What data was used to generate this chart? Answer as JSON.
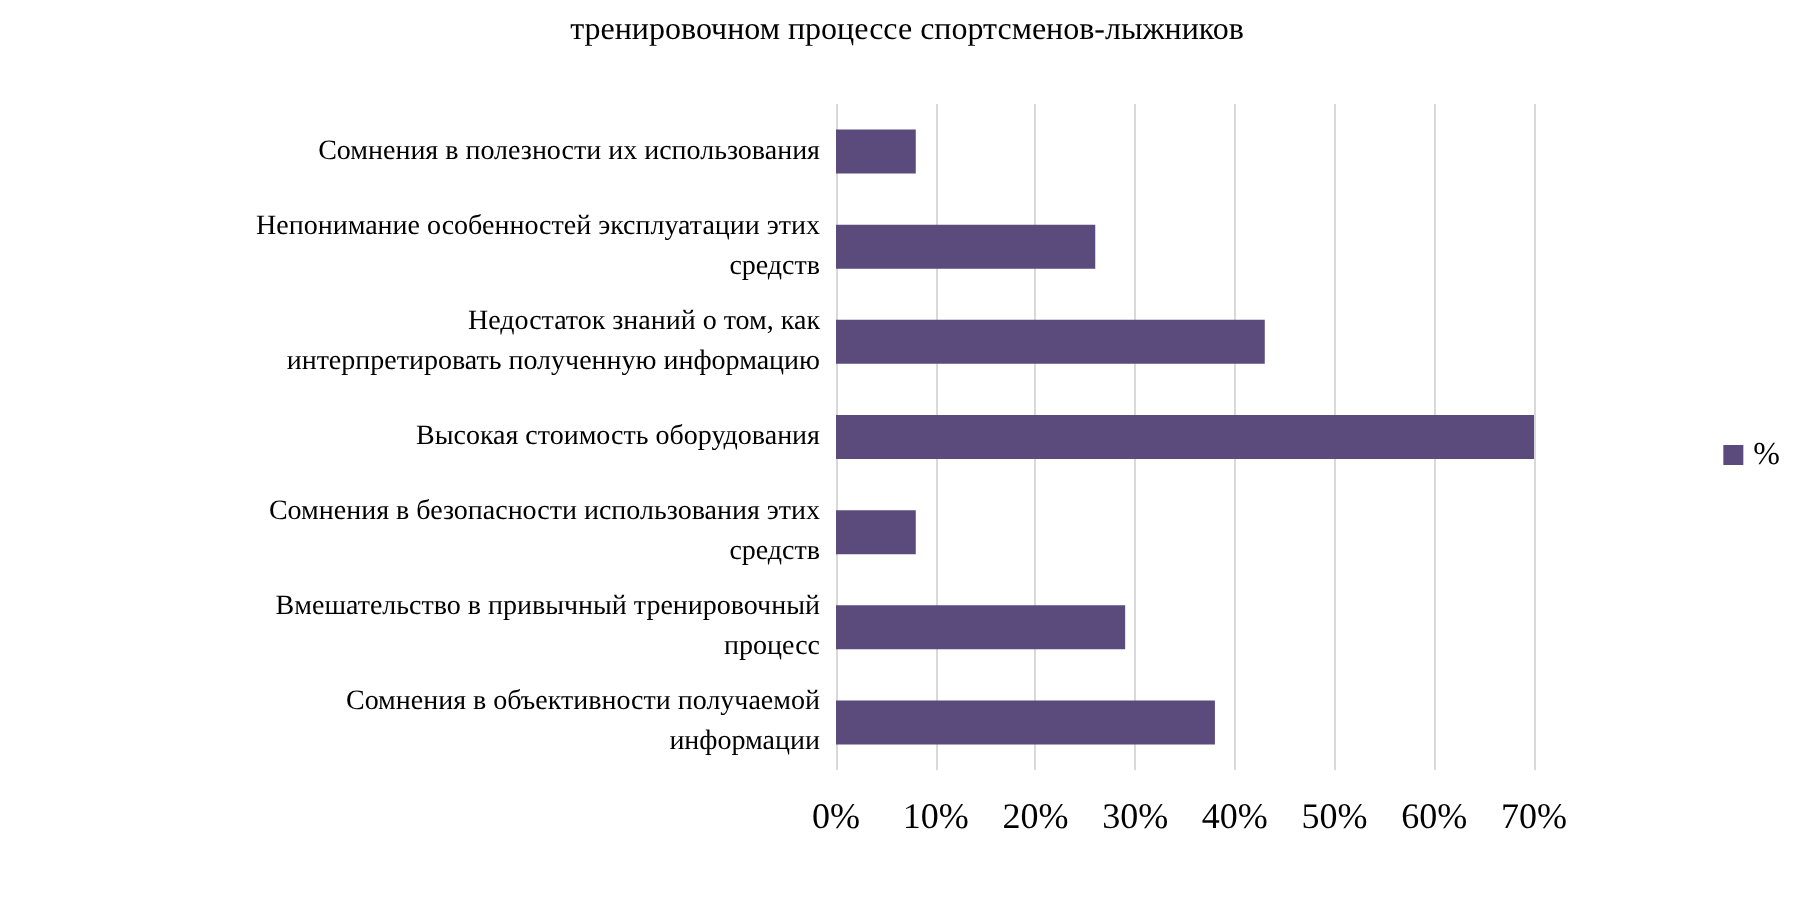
{
  "chart_data": {
    "type": "bar",
    "orientation": "horizontal",
    "title": "тренировочном процессе спортсменов-лыжников",
    "categories": [
      "Сомнения в полезности их использования",
      "Непонимание особенностей эксплуатации этих средств",
      "Недостаток знаний о том, как интерпретировать полученную информацию",
      "Высокая стоимость оборудования",
      "Сомнения в безопасности использования этих средств",
      "Вмешательство в привычный тренировочный процесс",
      "Сомнения в объективности получаемой информации"
    ],
    "series": [
      {
        "name": "%",
        "color": "#5b4a7c",
        "values": [
          8,
          26,
          43,
          70,
          8,
          29,
          38
        ]
      }
    ],
    "xlim": [
      0,
      70
    ],
    "xticks": [
      {
        "value": 0,
        "label": "0%"
      },
      {
        "value": 10,
        "label": "10%"
      },
      {
        "value": 20,
        "label": "20%"
      },
      {
        "value": 30,
        "label": "30%"
      },
      {
        "value": 40,
        "label": "40%"
      },
      {
        "value": 50,
        "label": "50%"
      },
      {
        "value": 60,
        "label": "60%"
      },
      {
        "value": 70,
        "label": "70%"
      }
    ],
    "grid": "x",
    "legend": "right"
  }
}
